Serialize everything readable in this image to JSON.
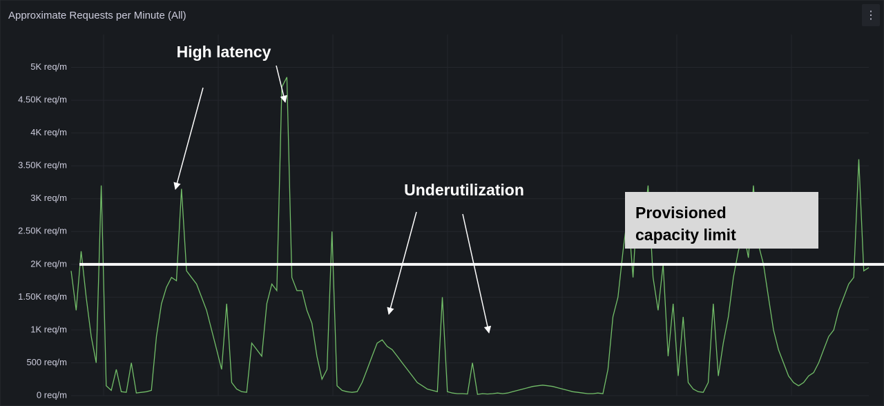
{
  "chart_data": {
    "type": "line",
    "title": "Approximate Requests per Minute (All)",
    "annotations": [
      "High latency",
      "Underutilization"
    ],
    "threshold": 2000,
    "threshold_label": [
      "Provisioned",
      "capacity limit"
    ],
    "ylim": [
      0,
      5500
    ],
    "yticks": [
      {
        "value": 0,
        "label": "0 req/m"
      },
      {
        "value": 500,
        "label": "500 req/m"
      },
      {
        "value": 1000,
        "label": "1K req/m"
      },
      {
        "value": 1500,
        "label": "1.50K req/m"
      },
      {
        "value": 2000,
        "label": "2K req/m"
      },
      {
        "value": 2500,
        "label": "2.50K req/m"
      },
      {
        "value": 3000,
        "label": "3K req/m"
      },
      {
        "value": 3500,
        "label": "3.50K req/m"
      },
      {
        "value": 4000,
        "label": "4K req/m"
      },
      {
        "value": 4500,
        "label": "4.50K req/m"
      },
      {
        "value": 5000,
        "label": "5K req/m"
      }
    ],
    "grid": true,
    "series": [
      {
        "color": "#73bf69",
        "values": [
          1900,
          1300,
          2200,
          1500,
          900,
          500,
          3200,
          150,
          80,
          400,
          60,
          50,
          500,
          40,
          50,
          60,
          80,
          900,
          1400,
          1650,
          1800,
          1750,
          3150,
          1900,
          1800,
          1700,
          1500,
          1300,
          1000,
          700,
          400,
          1400,
          200,
          100,
          60,
          50,
          800,
          700,
          600,
          1400,
          1700,
          1600,
          4700,
          4850,
          1800,
          1600,
          1600,
          1300,
          1100,
          600,
          250,
          400,
          2500,
          150,
          80,
          60,
          50,
          60,
          200,
          400,
          600,
          800,
          850,
          750,
          700,
          600,
          500,
          400,
          300,
          200,
          150,
          100,
          80,
          60,
          1500,
          60,
          40,
          30,
          30,
          25,
          500,
          20,
          30,
          25,
          30,
          40,
          30,
          40,
          60,
          80,
          100,
          120,
          140,
          150,
          160,
          150,
          140,
          120,
          100,
          80,
          60,
          50,
          40,
          30,
          30,
          40,
          30,
          400,
          1200,
          1500,
          2200,
          2800,
          1800,
          3100,
          2500,
          3200,
          1800,
          1300,
          2000,
          600,
          1400,
          300,
          1200,
          200,
          100,
          60,
          50,
          200,
          1400,
          300,
          800,
          1200,
          1800,
          2200,
          2500,
          2100,
          3200,
          2300,
          2000,
          1500,
          1000,
          700,
          500,
          300,
          200,
          150,
          200,
          300,
          350,
          500,
          700,
          900,
          1000,
          1300,
          1500,
          1700,
          1800,
          3600,
          1900,
          1950
        ]
      }
    ]
  }
}
